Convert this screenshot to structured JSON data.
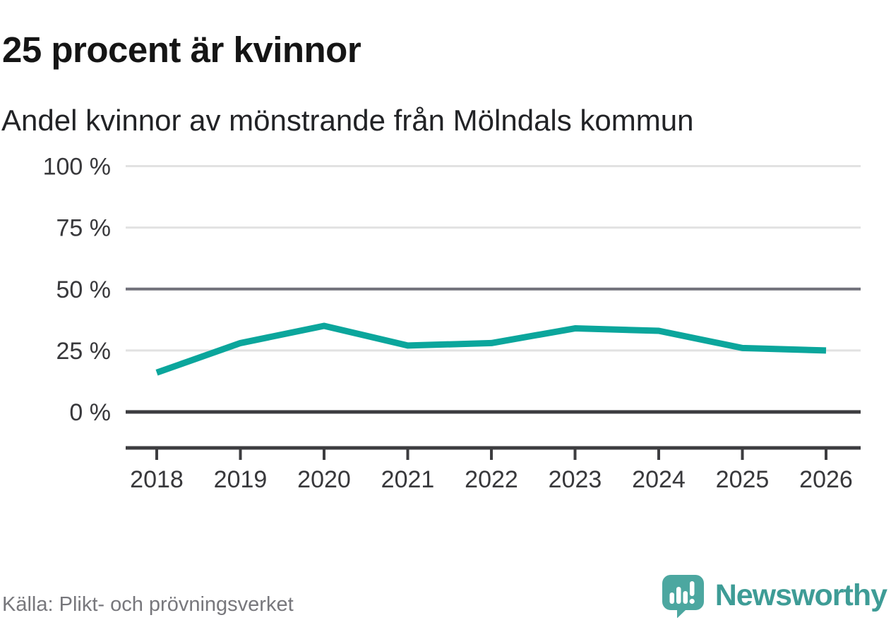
{
  "header": {
    "title": "25 procent är kvinnor",
    "subtitle": "Andel kvinnor av mönstrande från Mölndals kommun"
  },
  "chart_data": {
    "type": "line",
    "x": [
      "2018",
      "2019",
      "2020",
      "2021",
      "2022",
      "2023",
      "2024",
      "2025",
      "2026"
    ],
    "series": [
      {
        "name": "Andel kvinnor av mönstrande",
        "values": [
          16,
          28,
          35,
          27,
          28,
          34,
          33,
          26,
          25
        ]
      }
    ],
    "unit": "%",
    "ylim": [
      0,
      100
    ],
    "yticks": [
      0,
      25,
      50,
      75,
      100
    ],
    "ytick_labels": [
      "0 %",
      "25 %",
      "50 %",
      "75 %",
      "100 %"
    ],
    "emphasized_gridline": 50,
    "baseline_gridline": 0,
    "grid": "horizontal-only",
    "legend": "none",
    "line_color": "#0ba69c",
    "title": "25 procent är kvinnor",
    "xlabel": "",
    "ylabel": ""
  },
  "footer": {
    "source": "Källa: Plikt- och prövningsverket",
    "brand": {
      "name": "Newsworthy",
      "icon": "speech-bubble-bar-chart-icon",
      "logo_color": "#4ca7a0",
      "text_color": "#3e9c96",
      "icon_glyph_color": "#ffffff"
    }
  }
}
